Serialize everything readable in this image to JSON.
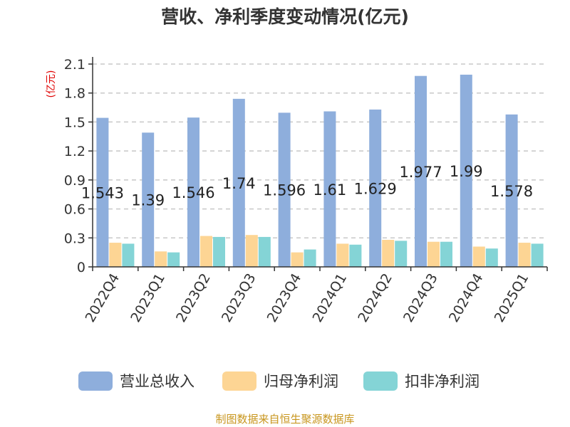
{
  "chart_data": {
    "type": "bar",
    "title": "营收、净利季度变动情况(亿元)",
    "ylabel": "(亿元)",
    "xlabel": "",
    "ylim": [
      0,
      2.1
    ],
    "yticks": [
      "0",
      "0.3",
      "0.6",
      "0.9",
      "1.2",
      "1.5",
      "1.8",
      "2.1"
    ],
    "grid": true,
    "legend_position": "bottom",
    "categories": [
      "2022Q4",
      "2023Q1",
      "2023Q2",
      "2023Q3",
      "2023Q4",
      "2024Q1",
      "2024Q2",
      "2024Q3",
      "2024Q4",
      "2025Q1"
    ],
    "series": [
      {
        "name": "营业总收入",
        "color": "#8eaedc",
        "values": [
          1.543,
          1.39,
          1.546,
          1.74,
          1.596,
          1.61,
          1.629,
          1.977,
          1.99,
          1.578
        ],
        "labels": [
          "1.543",
          "1.39",
          "1.546",
          "1.74",
          "1.596",
          "1.61",
          "1.629",
          "1.977",
          "1.99",
          "1.578"
        ]
      },
      {
        "name": "归母净利润",
        "color": "#fdd594",
        "values": [
          0.25,
          0.16,
          0.32,
          0.33,
          0.15,
          0.24,
          0.28,
          0.26,
          0.21,
          0.25
        ]
      },
      {
        "name": "扣非净利润",
        "color": "#84d4d6",
        "values": [
          0.24,
          0.15,
          0.31,
          0.31,
          0.18,
          0.23,
          0.27,
          0.26,
          0.19,
          0.24
        ]
      }
    ],
    "source": "制图数据来自恒生聚源数据库"
  }
}
